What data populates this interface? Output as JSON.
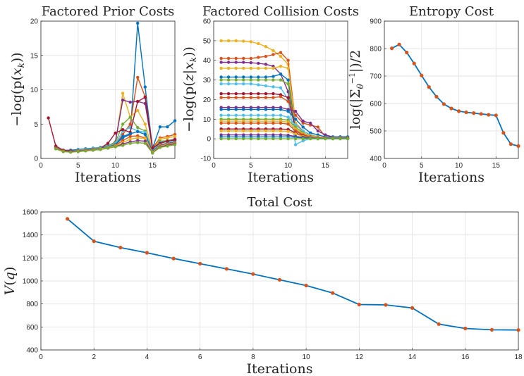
{
  "chart_data": [
    {
      "type": "line",
      "title": "Factored Prior Costs",
      "xlabel": "Iterations",
      "ylabel": "−log(p(x_k))",
      "xlim": [
        0,
        18
      ],
      "ylim": [
        0,
        20
      ],
      "xticks": [
        "0",
        "5",
        "10",
        "15"
      ],
      "yticks": [
        "0",
        "5",
        "10",
        "15",
        "20"
      ],
      "grid": true,
      "x": [
        1,
        2,
        3,
        4,
        5,
        6,
        7,
        8,
        9,
        10,
        11,
        12,
        13,
        14,
        15,
        16,
        17,
        18
      ],
      "series": [
        {
          "color": "#0072BD",
          "values": [
            null,
            1.6,
            1.2,
            1.2,
            1.3,
            1.4,
            1.5,
            1.6,
            1.8,
            2.0,
            3.0,
            3.5,
            19.7,
            10.4,
            1.5,
            4.6,
            4.6,
            5.5
          ]
        },
        {
          "color": "#D95319",
          "values": [
            null,
            1.5,
            1.1,
            1.1,
            1.2,
            1.3,
            1.4,
            1.6,
            1.7,
            2.0,
            3.5,
            5.0,
            11.8,
            9.0,
            1.5,
            3.0,
            3.2,
            3.5
          ]
        },
        {
          "color": "#EDB120",
          "values": [
            null,
            1.5,
            1.1,
            1.0,
            1.1,
            1.2,
            1.4,
            1.5,
            1.8,
            2.2,
            9.5,
            6.0,
            7.0,
            5.0,
            1.2,
            2.8,
            3.0,
            3.2
          ]
        },
        {
          "color": "#7E2F8E",
          "values": [
            null,
            1.5,
            1.1,
            1.0,
            1.1,
            1.2,
            1.3,
            1.5,
            1.8,
            2.4,
            8.5,
            8.2,
            8.3,
            8.0,
            1.4,
            2.4,
            2.6,
            2.8
          ]
        },
        {
          "color": "#77AC30",
          "values": [
            null,
            1.6,
            1.2,
            1.1,
            1.2,
            1.3,
            1.4,
            1.6,
            1.9,
            2.3,
            5.0,
            6.0,
            4.5,
            4.0,
            1.2,
            2.5,
            2.6,
            2.7
          ]
        },
        {
          "color": "#4DBEEE",
          "values": [
            null,
            1.6,
            1.2,
            1.1,
            1.2,
            1.3,
            1.4,
            1.6,
            1.8,
            2.1,
            4.0,
            4.5,
            4.0,
            3.8,
            1.1,
            2.3,
            2.4,
            2.6
          ]
        },
        {
          "color": "#A2142F",
          "values": [
            5.9,
            1.8,
            1.2,
            1.1,
            1.1,
            1.2,
            1.3,
            1.5,
            2.2,
            3.7,
            4.2,
            3.8,
            8.3,
            8.9,
            1.5,
            2.2,
            2.5,
            2.7
          ]
        },
        {
          "color": "#0072BD",
          "values": [
            null,
            1.5,
            1.1,
            1.0,
            1.1,
            1.2,
            1.3,
            1.5,
            1.7,
            2.0,
            3.2,
            3.6,
            3.9,
            3.5,
            1.0,
            2.0,
            2.2,
            2.4
          ]
        },
        {
          "color": "#D95319",
          "values": [
            null,
            1.5,
            1.1,
            1.0,
            1.1,
            1.2,
            1.3,
            1.4,
            1.6,
            1.9,
            2.6,
            3.2,
            3.3,
            3.0,
            0.9,
            1.9,
            2.1,
            2.3
          ]
        },
        {
          "color": "#EDB120",
          "values": [
            null,
            1.4,
            1.0,
            1.0,
            1.0,
            1.1,
            1.2,
            1.4,
            1.6,
            1.8,
            2.3,
            2.8,
            3.0,
            2.9,
            0.9,
            1.8,
            2.0,
            2.2
          ]
        },
        {
          "color": "#7E2F8E",
          "values": [
            null,
            1.4,
            1.0,
            1.0,
            1.0,
            1.1,
            1.2,
            1.3,
            1.5,
            1.7,
            2.1,
            2.4,
            2.6,
            2.5,
            0.8,
            1.7,
            1.9,
            2.1
          ]
        },
        {
          "color": "#77AC30",
          "values": [
            null,
            1.4,
            1.0,
            0.9,
            1.0,
            1.1,
            1.2,
            1.3,
            1.5,
            1.7,
            1.9,
            2.2,
            2.3,
            2.2,
            0.8,
            1.6,
            1.8,
            2.0
          ]
        }
      ]
    },
    {
      "type": "line",
      "title": "Factored Collision Costs",
      "xlabel": "Iterations",
      "ylabel": "−log(p(z|x_k))",
      "xlim": [
        0,
        18
      ],
      "ylim": [
        -10,
        60
      ],
      "xticks": [
        "0",
        "5",
        "10",
        "15"
      ],
      "yticks": [
        "-10",
        "0",
        "10",
        "20",
        "30",
        "40",
        "50",
        "60"
      ],
      "grid": true,
      "x": [
        1,
        2,
        3,
        4,
        5,
        6,
        7,
        8,
        9,
        10,
        11,
        12,
        13,
        14,
        15,
        16,
        17,
        18
      ],
      "series": [
        {
          "color": "#EDB120",
          "values": [
            50,
            50,
            50,
            49.8,
            49.5,
            48.5,
            47,
            45,
            42,
            38,
            1,
            0.5,
            0.3,
            0.2,
            0.1,
            0.1,
            0.1,
            0.1
          ]
        },
        {
          "color": "#D95319",
          "values": [
            41,
            41,
            41,
            41,
            41,
            41.5,
            42,
            43,
            44,
            40,
            8,
            4,
            2,
            1,
            0.5,
            0.5,
            0.3,
            0.3
          ]
        },
        {
          "color": "#7E2F8E",
          "values": [
            39,
            39,
            39,
            39,
            38.8,
            38.5,
            38,
            37,
            33,
            24,
            3,
            1,
            0.5,
            0.3,
            0.2,
            0.2,
            0.2,
            0.2
          ]
        },
        {
          "color": "#EDB120",
          "values": [
            36,
            36,
            36,
            36,
            36,
            36,
            36,
            36,
            37,
            36,
            8,
            3,
            1,
            0.5,
            0.3,
            0.3,
            0.3,
            0.3
          ]
        },
        {
          "color": "#0072BD",
          "values": [
            31.5,
            31.5,
            31.5,
            31.5,
            31.5,
            31.5,
            31.5,
            31.8,
            33,
            30,
            4,
            2,
            1,
            0.5,
            0.3,
            0.3,
            0.3,
            0.3
          ]
        },
        {
          "color": "#77AC30",
          "values": [
            30,
            30,
            30,
            30,
            30,
            30,
            30,
            30,
            30,
            28,
            3,
            1,
            0.5,
            0.3,
            0.2,
            0.2,
            0.2,
            0.2
          ]
        },
        {
          "color": "#4DBEEE",
          "values": [
            28,
            28,
            28,
            28,
            28,
            27.5,
            27,
            26.5,
            26,
            20,
            -3,
            -1,
            0,
            0,
            0,
            0,
            0,
            0
          ]
        },
        {
          "color": "#A2142F",
          "values": [
            23,
            23,
            23,
            23,
            23,
            23,
            23,
            23,
            22.5,
            21,
            5,
            2,
            1,
            0.5,
            0.3,
            0.3,
            0.3,
            0.3
          ]
        },
        {
          "color": "#D95319",
          "values": [
            21,
            21,
            21,
            21,
            21,
            21,
            21,
            21,
            21.5,
            19,
            12,
            8,
            7,
            6,
            1,
            1,
            1,
            1
          ]
        },
        {
          "color": "#7E2F8E",
          "values": [
            16,
            16,
            16,
            16,
            16,
            16,
            16,
            16,
            16,
            15,
            14,
            9,
            8,
            4,
            2,
            1,
            1,
            1
          ]
        },
        {
          "color": "#0072BD",
          "values": [
            15,
            15,
            15,
            15,
            15,
            15,
            15,
            15,
            15,
            14,
            10,
            6,
            3,
            2,
            1,
            1,
            1,
            1
          ]
        },
        {
          "color": "#4DBEEE",
          "values": [
            12,
            12,
            12,
            12,
            12,
            12,
            12,
            12,
            12,
            11,
            7,
            4,
            2,
            1,
            0.5,
            0.5,
            0.5,
            0.5
          ]
        },
        {
          "color": "#77AC30",
          "values": [
            10,
            10,
            10,
            10,
            10,
            10,
            10,
            10,
            10,
            9.5,
            6,
            3,
            1.5,
            1,
            0.5,
            0.5,
            0.5,
            0.5
          ]
        },
        {
          "color": "#EDB120",
          "values": [
            9,
            9,
            9,
            9,
            9,
            9,
            9,
            9,
            9,
            8.5,
            5,
            2.5,
            1.5,
            1,
            0.5,
            0.5,
            0.5,
            0.5
          ]
        },
        {
          "color": "#D95319",
          "values": [
            8,
            8,
            8,
            8,
            8,
            8,
            8,
            8,
            8,
            7.5,
            4,
            2,
            1,
            0.5,
            0.3,
            0.3,
            0.3,
            0.3
          ]
        },
        {
          "color": "#A2142F",
          "values": [
            5,
            5,
            5,
            5,
            5,
            5,
            5,
            5,
            5,
            4.8,
            3,
            1.5,
            1,
            0.5,
            0.3,
            0.3,
            0.3,
            0.3
          ]
        },
        {
          "color": "#EDB120",
          "values": [
            4,
            4,
            4,
            4,
            4,
            4,
            4,
            4,
            4,
            3.8,
            2.5,
            1.2,
            0.8,
            0.4,
            0.2,
            0.2,
            0.2,
            0.2
          ]
        },
        {
          "color": "#7E2F8E",
          "values": [
            2,
            2,
            2,
            2,
            2,
            2,
            2,
            2,
            2,
            1.8,
            1.2,
            0.8,
            0.5,
            0.3,
            0.2,
            0.2,
            0.2,
            0.2
          ]
        },
        {
          "color": "#0072BD",
          "values": [
            1,
            1,
            1,
            1,
            1,
            1,
            1,
            1,
            1,
            1,
            0.8,
            0.5,
            0.3,
            0.2,
            0.1,
            0.1,
            0.1,
            0.1
          ]
        },
        {
          "color": "#77AC30",
          "values": [
            0,
            0,
            0,
            0,
            0,
            0,
            0,
            0,
            0,
            0,
            0,
            0,
            0,
            0,
            0,
            0,
            0,
            0
          ]
        }
      ]
    },
    {
      "type": "line",
      "title": "Entropy Cost",
      "xlabel": "Iterations",
      "ylabel": "log(|Σ_θ^{-1}|)/2",
      "xlim": [
        0,
        18
      ],
      "ylim": [
        400,
        900
      ],
      "xticks": [
        "0",
        "5",
        "10",
        "15"
      ],
      "yticks": [
        "400",
        "500",
        "600",
        "700",
        "800",
        "900"
      ],
      "grid": true,
      "line_color": "#0072BD",
      "marker_color": "#D95319",
      "x": [
        1,
        2,
        3,
        4,
        5,
        6,
        7,
        8,
        9,
        10,
        11,
        12,
        13,
        14,
        15,
        16,
        17,
        18
      ],
      "values": [
        801,
        815,
        786,
        746,
        702,
        660,
        625,
        598,
        582,
        572,
        568,
        565,
        562,
        559,
        557,
        493,
        452,
        445
      ]
    },
    {
      "type": "line",
      "title": "Total Cost",
      "xlabel": "Iterations",
      "ylabel": "V(q)",
      "xlim": [
        0,
        18
      ],
      "ylim": [
        400,
        1600
      ],
      "xticks": [
        "0",
        "2",
        "4",
        "6",
        "8",
        "10",
        "12",
        "14",
        "16",
        "18"
      ],
      "yticks": [
        "400",
        "600",
        "800",
        "1000",
        "1200",
        "1400",
        "1600"
      ],
      "grid": true,
      "line_color": "#0072BD",
      "marker_color": "#D95319",
      "x": [
        1,
        2,
        3,
        4,
        5,
        6,
        7,
        8,
        9,
        10,
        11,
        12,
        13,
        14,
        15,
        16,
        17,
        18
      ],
      "values": [
        1540,
        1345,
        1290,
        1245,
        1195,
        1150,
        1105,
        1060,
        1010,
        960,
        895,
        795,
        792,
        765,
        625,
        587,
        575,
        573
      ]
    }
  ]
}
